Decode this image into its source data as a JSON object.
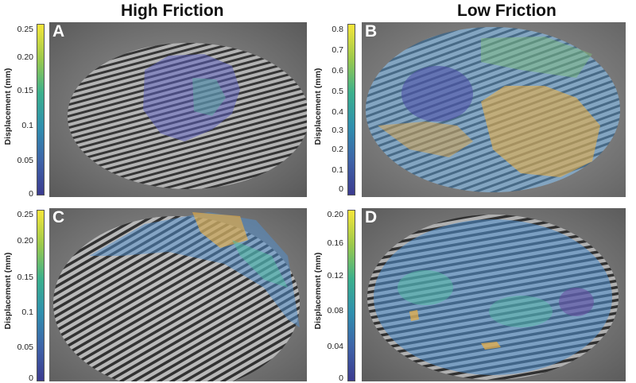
{
  "titles": {
    "left": "High Friction",
    "right": "Low Friction"
  },
  "axis_label": "Displacement (mm)",
  "panels": {
    "A": {
      "letter": "A",
      "ticks": [
        "0.25",
        "0.20",
        "0.15",
        "0.1",
        "0.05",
        "0"
      ]
    },
    "B": {
      "letter": "B",
      "ticks": [
        "0.8",
        "0.7",
        "0.6",
        "0.5",
        "0.4",
        "0.3",
        "0.2",
        "0.1",
        "0"
      ]
    },
    "C": {
      "letter": "C",
      "ticks": [
        "0.25",
        "0.20",
        "0.15",
        "0.1",
        "0.05",
        "0"
      ]
    },
    "D": {
      "letter": "D",
      "ticks": [
        "0.20",
        "0.16",
        "0.12",
        "0.08",
        "0.04",
        "0"
      ]
    }
  },
  "colormap": [
    "#3b3b8f",
    "#3e63a8",
    "#2f8fae",
    "#3bb08c",
    "#9cc94b",
    "#f5e63a"
  ]
}
